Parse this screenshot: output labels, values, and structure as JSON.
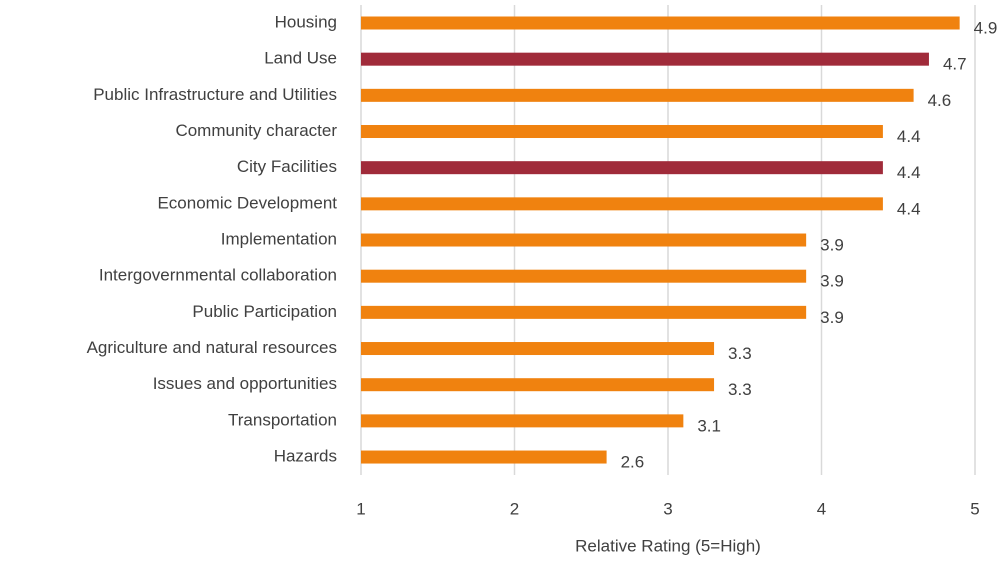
{
  "chart_data": {
    "type": "bar",
    "orientation": "horizontal",
    "xlabel": "Relative Rating (5=High)",
    "categories": [
      "Housing",
      "Land Use",
      "Public Infrastructure and Utilities",
      "Community character",
      "City Facilities",
      "Economic Development",
      "Implementation",
      "Intergovernmental collaboration",
      "Public Participation",
      "Agriculture and natural resources",
      "Issues and opportunities",
      "Transportation",
      "Hazards"
    ],
    "values": [
      4.9,
      4.7,
      4.6,
      4.4,
      4.4,
      4.4,
      3.9,
      3.9,
      3.9,
      3.3,
      3.3,
      3.1,
      2.6
    ],
    "colors": [
      "#f0820f",
      "#a02b3a",
      "#f0820f",
      "#f0820f",
      "#a02b3a",
      "#f0820f",
      "#f0820f",
      "#f0820f",
      "#f0820f",
      "#f0820f",
      "#f0820f",
      "#f0820f",
      "#f0820f"
    ],
    "xlim": [
      1,
      5
    ],
    "xticks": [
      1,
      2,
      3,
      4,
      5
    ],
    "grid": true
  }
}
